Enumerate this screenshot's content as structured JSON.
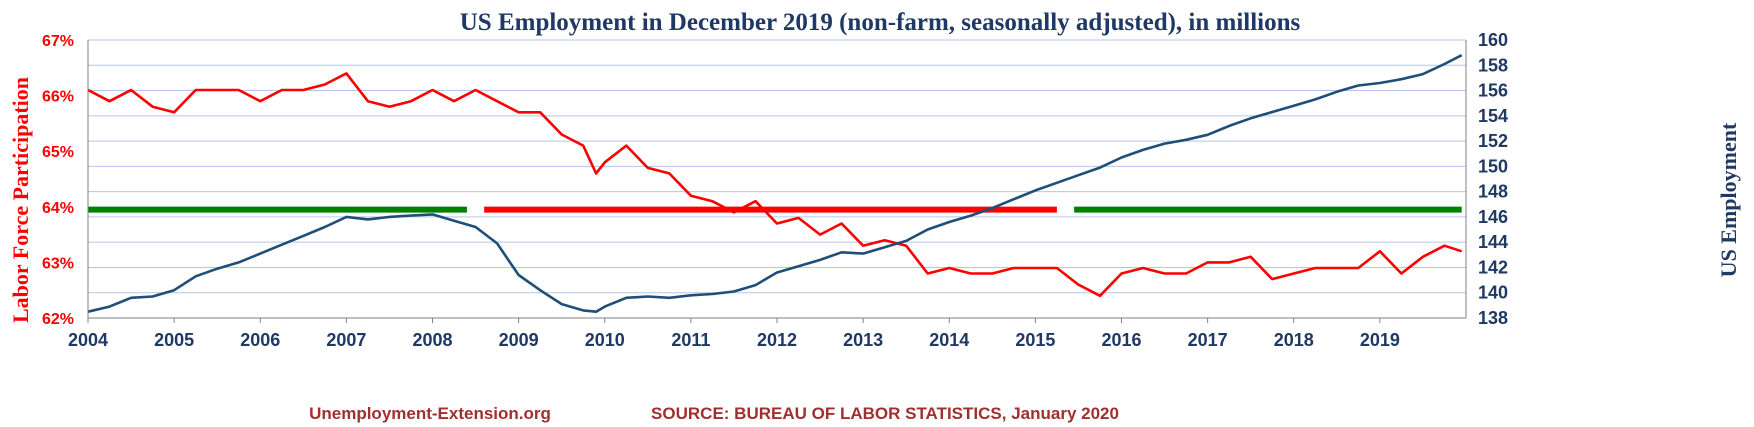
{
  "chart_data": {
    "type": "line",
    "title": "US Employment in December 2019 (non-farm, seasonally adjusted), in millions",
    "ylabel_left": "Labor Force Participation",
    "ylabel_right": "US Employment",
    "x_ticks": [
      "2004",
      "2005",
      "2006",
      "2007",
      "2008",
      "2009",
      "2010",
      "2011",
      "2012",
      "2013",
      "2014",
      "2015",
      "2016",
      "2017",
      "2018",
      "2019"
    ],
    "y_left_ticks": [
      "62%",
      "63%",
      "64%",
      "65%",
      "66%",
      "67%"
    ],
    "y_right_ticks": [
      "138",
      "140",
      "142",
      "144",
      "146",
      "148",
      "150",
      "152",
      "154",
      "156",
      "158",
      "160"
    ],
    "ylim_left": [
      62,
      67
    ],
    "ylim_right": [
      138,
      160
    ],
    "xlim": [
      2004,
      2020
    ],
    "grid": true,
    "reference_line": {
      "value_left": 63.95,
      "segments": [
        {
          "from": 2004.0,
          "to": 2008.4,
          "color": "#008000"
        },
        {
          "from": 2008.6,
          "to": 2015.25,
          "color": "#ff0000"
        },
        {
          "from": 2015.45,
          "to": 2019.95,
          "color": "#008000"
        }
      ]
    },
    "series": [
      {
        "name": "Labor Force Participation",
        "axis": "left",
        "color": "#ff0000",
        "x": [
          2004.0,
          2004.25,
          2004.5,
          2004.75,
          2005.0,
          2005.25,
          2005.5,
          2005.75,
          2006.0,
          2006.25,
          2006.5,
          2006.75,
          2007.0,
          2007.25,
          2007.5,
          2007.75,
          2008.0,
          2008.25,
          2008.5,
          2008.75,
          2009.0,
          2009.25,
          2009.5,
          2009.75,
          2009.9,
          2010.0,
          2010.25,
          2010.5,
          2010.75,
          2011.0,
          2011.25,
          2011.5,
          2011.75,
          2012.0,
          2012.25,
          2012.5,
          2012.75,
          2013.0,
          2013.25,
          2013.5,
          2013.75,
          2014.0,
          2014.25,
          2014.5,
          2014.75,
          2015.0,
          2015.25,
          2015.5,
          2015.75,
          2016.0,
          2016.25,
          2016.5,
          2016.75,
          2017.0,
          2017.25,
          2017.5,
          2017.75,
          2018.0,
          2018.25,
          2018.5,
          2018.75,
          2019.0,
          2019.25,
          2019.5,
          2019.75,
          2019.95
        ],
        "values": [
          66.1,
          65.9,
          66.1,
          65.8,
          65.7,
          66.1,
          66.1,
          66.1,
          65.9,
          66.1,
          66.1,
          66.2,
          66.4,
          65.9,
          65.8,
          65.9,
          66.1,
          65.9,
          66.1,
          65.9,
          65.7,
          65.7,
          65.3,
          65.1,
          64.6,
          64.8,
          65.1,
          64.7,
          64.6,
          64.2,
          64.1,
          63.9,
          64.1,
          63.7,
          63.8,
          63.5,
          63.7,
          63.3,
          63.4,
          63.3,
          62.8,
          62.9,
          62.8,
          62.8,
          62.9,
          62.9,
          62.9,
          62.6,
          62.4,
          62.8,
          62.9,
          62.8,
          62.8,
          63.0,
          63.0,
          63.1,
          62.7,
          62.8,
          62.9,
          62.9,
          62.9,
          63.2,
          62.8,
          63.1,
          63.3,
          63.2
        ]
      },
      {
        "name": "US Employment",
        "axis": "right",
        "color": "#1f4e79",
        "x": [
          2004.0,
          2004.25,
          2004.5,
          2004.75,
          2005.0,
          2005.25,
          2005.5,
          2005.75,
          2006.0,
          2006.25,
          2006.5,
          2006.75,
          2007.0,
          2007.25,
          2007.5,
          2007.75,
          2008.0,
          2008.25,
          2008.5,
          2008.75,
          2009.0,
          2009.25,
          2009.5,
          2009.75,
          2009.9,
          2010.0,
          2010.25,
          2010.5,
          2010.75,
          2011.0,
          2011.25,
          2011.5,
          2011.75,
          2012.0,
          2012.25,
          2012.5,
          2012.75,
          2013.0,
          2013.25,
          2013.5,
          2013.75,
          2014.0,
          2014.25,
          2014.5,
          2014.75,
          2015.0,
          2015.25,
          2015.5,
          2015.75,
          2016.0,
          2016.25,
          2016.5,
          2016.75,
          2017.0,
          2017.25,
          2017.5,
          2017.75,
          2018.0,
          2018.25,
          2018.5,
          2018.75,
          2019.0,
          2019.25,
          2019.5,
          2019.75,
          2019.95
        ],
        "values": [
          138.5,
          138.9,
          139.6,
          139.7,
          140.2,
          141.3,
          141.9,
          142.4,
          143.1,
          143.8,
          144.5,
          145.2,
          146.0,
          145.8,
          146.0,
          146.1,
          146.2,
          145.7,
          145.2,
          143.9,
          141.4,
          140.2,
          139.1,
          138.6,
          138.5,
          138.9,
          139.6,
          139.7,
          139.6,
          139.8,
          139.9,
          140.1,
          140.6,
          141.6,
          142.1,
          142.6,
          143.2,
          143.1,
          143.6,
          144.1,
          145.0,
          145.6,
          146.1,
          146.7,
          147.4,
          148.1,
          148.7,
          149.3,
          149.9,
          150.7,
          151.3,
          151.8,
          152.1,
          152.5,
          153.2,
          153.8,
          154.3,
          154.8,
          155.3,
          155.9,
          156.4,
          156.6,
          156.9,
          157.3,
          158.1,
          158.8
        ]
      }
    ],
    "footer_left": "Unemployment-Extension.org",
    "footer_right": "SOURCE: BUREAU OF LABOR STATISTICS, January 2020"
  }
}
